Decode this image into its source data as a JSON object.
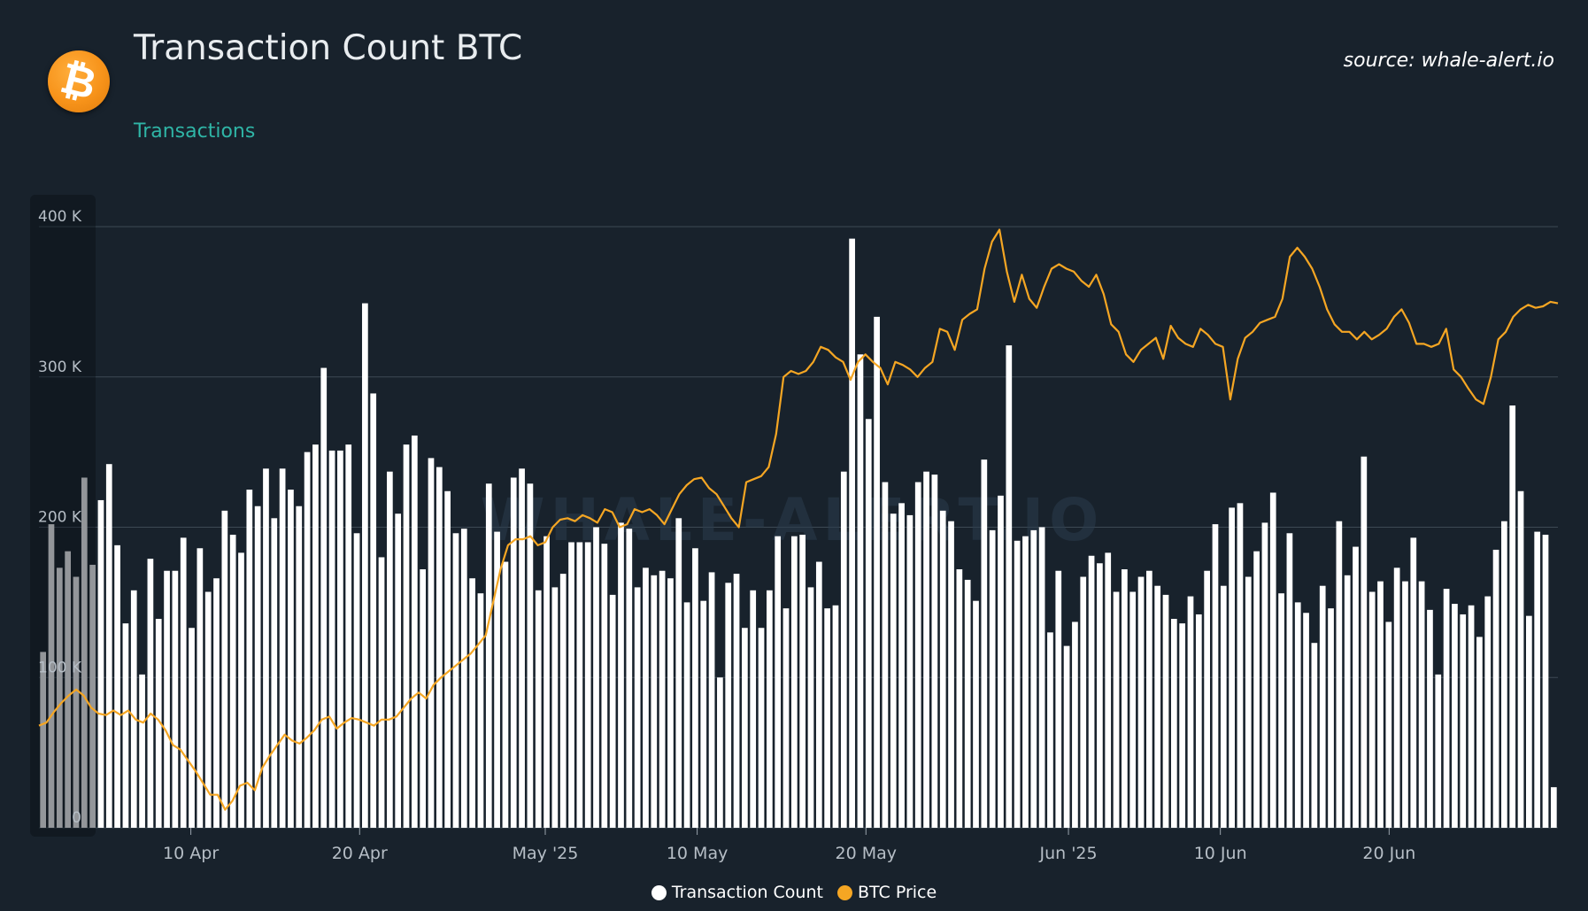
{
  "header": {
    "title": "Transaction Count BTC",
    "subtitle": "Transactions",
    "source": "source: whale-alert.io",
    "logo_glyph": "₿",
    "logo_icon": "bitcoin-icon"
  },
  "watermark": "WHALE-ALERT.IO",
  "colors": {
    "background": "#18222c",
    "bars": "#ffffff",
    "line": "#f5a623",
    "subtitle": "#2fb5a6"
  },
  "chart_data": {
    "type": "bar",
    "y_ticks": [
      "0",
      "100 K",
      "200 K",
      "300 K",
      "400 K"
    ],
    "y_tick_values": [
      0,
      100000,
      200000,
      300000,
      400000
    ],
    "ylim": [
      0,
      400000
    ],
    "x_tick_labels": [
      "10 Apr",
      "20 Apr",
      "May '25",
      "10 May",
      "20 May",
      "Jun '25",
      "10 Jun",
      "20 Jun"
    ],
    "x_tick_dates": [
      "2025-04-10",
      "2025-04-20",
      "2025-05-01",
      "2025-05-10",
      "2025-05-20",
      "2025-06-01",
      "2025-06-10",
      "2025-06-20"
    ],
    "x_range": [
      "2025-04-01",
      "2025-06-30"
    ],
    "grid": true,
    "legend_position": "bottom-center",
    "series": [
      {
        "name": "Transaction Count",
        "type": "bar",
        "color": "#ffffff",
        "values": [
          117000,
          202000,
          173000,
          184000,
          167000,
          233000,
          175000,
          218000,
          242000,
          188000,
          136000,
          158000,
          102000,
          179000,
          139000,
          171000,
          171000,
          193000,
          133000,
          186000,
          157000,
          166000,
          211000,
          195000,
          183000,
          225000,
          214000,
          239000,
          206000,
          239000,
          225000,
          214000,
          250000,
          255000,
          306000,
          251000,
          251000,
          255000,
          196000,
          349000,
          289000,
          180000,
          237000,
          209000,
          255000,
          261000,
          172000,
          246000,
          240000,
          224000,
          196000,
          199000,
          166000,
          156000,
          229000,
          197000,
          177000,
          233000,
          239000,
          229000,
          158000,
          194000,
          160000,
          169000,
          190000,
          190000,
          190000,
          200000,
          189000,
          155000,
          203000,
          199000,
          160000,
          173000,
          168000,
          171000,
          166000,
          206000,
          150000,
          186000,
          151000,
          170000,
          100000,
          163000,
          169000,
          133000,
          158000,
          133000,
          158000,
          194000,
          146000,
          194000,
          195000,
          160000,
          177000,
          146000,
          148000,
          237000,
          392000,
          315000,
          272000,
          340000,
          230000,
          209000,
          216000,
          208000,
          230000,
          237000,
          235000,
          211000,
          204000,
          172000,
          165000,
          151000,
          245000,
          198000,
          221000,
          321000,
          191000,
          194000,
          198000,
          200000,
          130000,
          171000,
          121000,
          137000,
          167000,
          181000,
          176000,
          183000,
          157000,
          172000,
          157000,
          167000,
          171000,
          161000,
          155000,
          139000,
          136000,
          154000,
          142000,
          171000,
          202000,
          161000,
          213000,
          216000,
          167000,
          184000,
          203000,
          223000,
          156000,
          196000,
          150000,
          143000,
          123000,
          161000,
          146000,
          204000,
          168000,
          187000,
          247000,
          157000,
          164000,
          137000,
          173000,
          164000,
          193000,
          164000,
          145000,
          102000,
          159000,
          149000,
          142000,
          148000,
          127000,
          154000,
          185000,
          204000,
          281000,
          224000,
          141000,
          197000,
          195000,
          27000
        ]
      },
      {
        "name": "BTC Price",
        "type": "line",
        "color": "#f5a623",
        "scale_min": 0,
        "scale_max": 400,
        "values": [
          68,
          70,
          77,
          83,
          88,
          92,
          88,
          80,
          76,
          75,
          78,
          75,
          78,
          72,
          70,
          76,
          72,
          65,
          55,
          52,
          45,
          38,
          30,
          22,
          22,
          12,
          18,
          28,
          30,
          25,
          40,
          48,
          55,
          62,
          58,
          56,
          60,
          65,
          72,
          74,
          66,
          70,
          73,
          72,
          70,
          68,
          72,
          72,
          74,
          80,
          86,
          90,
          86,
          95,
          100,
          104,
          108,
          112,
          116,
          122,
          128,
          150,
          172,
          188,
          192,
          192,
          194,
          188,
          190,
          200,
          205,
          206,
          204,
          208,
          206,
          203,
          212,
          210,
          200,
          202,
          212,
          210,
          212,
          208,
          202,
          212,
          222,
          228,
          232,
          233,
          226,
          222,
          214,
          206,
          200,
          230,
          232,
          234,
          240,
          262,
          300,
          304,
          302,
          304,
          310,
          320,
          318,
          313,
          310,
          298,
          310,
          315,
          310,
          306,
          295,
          310,
          308,
          305,
          300,
          306,
          310,
          332,
          330,
          318,
          338,
          342,
          345,
          372,
          390,
          398,
          370,
          350,
          368,
          352,
          346,
          360,
          372,
          375,
          372,
          370,
          364,
          360,
          368,
          355,
          335,
          330,
          315,
          310,
          318,
          322,
          326,
          312,
          334,
          326,
          322,
          320,
          332,
          328,
          322,
          320,
          285,
          312,
          326,
          330,
          336,
          338,
          340,
          352,
          380,
          386,
          380,
          372,
          360,
          345,
          335,
          330,
          330,
          325,
          330,
          325,
          328,
          332,
          340,
          345,
          336,
          322,
          322,
          320,
          322,
          332,
          305,
          300,
          292,
          285,
          282,
          300,
          325,
          330,
          340,
          345,
          348,
          346,
          347,
          350,
          349
        ]
      }
    ]
  }
}
